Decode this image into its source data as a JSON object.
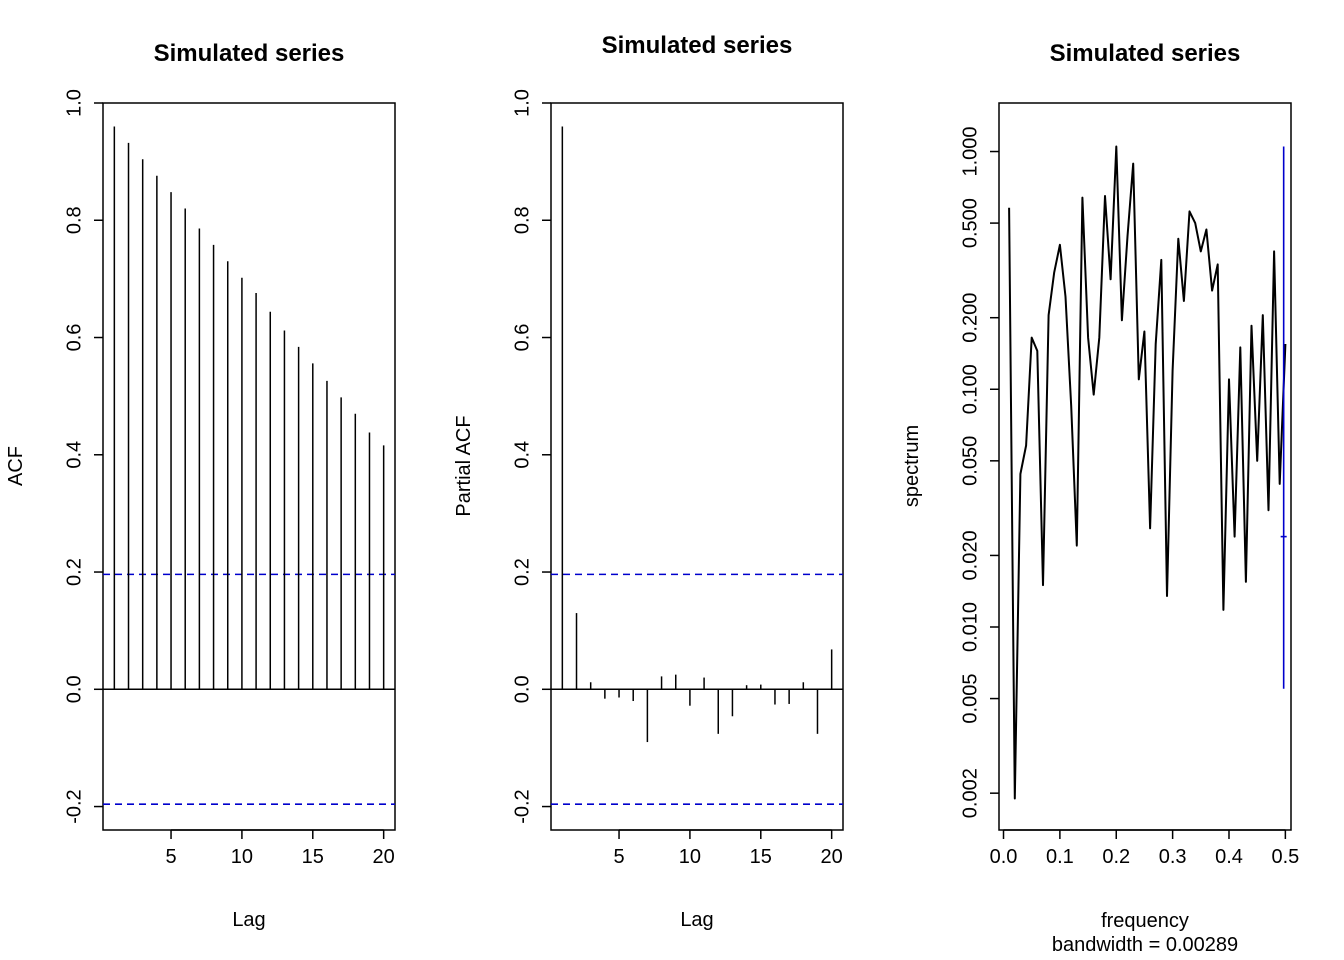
{
  "chart_data": [
    {
      "type": "bar",
      "title": "Simulated series",
      "xlabel": "Lag",
      "ylabel": "ACF",
      "xlim": [
        0.2,
        20.8
      ],
      "ylim": [
        -0.24,
        1.0
      ],
      "xticks": [
        5,
        10,
        15,
        20
      ],
      "yticks": [
        "-0.2",
        "0.0",
        "0.2",
        "0.4",
        "0.6",
        "0.8",
        "1.0"
      ],
      "ci": 0.196,
      "ci_color": "#0000cc",
      "x": [
        1,
        2,
        3,
        4,
        5,
        6,
        7,
        8,
        9,
        10,
        11,
        12,
        13,
        14,
        15,
        16,
        17,
        18,
        19,
        20
      ],
      "values": [
        0.96,
        0.932,
        0.904,
        0.876,
        0.848,
        0.82,
        0.786,
        0.758,
        0.73,
        0.702,
        0.676,
        0.644,
        0.612,
        0.584,
        0.556,
        0.526,
        0.498,
        0.47,
        0.438,
        0.416
      ]
    },
    {
      "type": "bar",
      "title": "Simulated series",
      "xlabel": "Lag",
      "ylabel": "Partial ACF",
      "xlim": [
        0.2,
        20.8
      ],
      "ylim": [
        -0.24,
        1.0
      ],
      "xticks": [
        5,
        10,
        15,
        20
      ],
      "yticks": [
        "-0.2",
        "0.0",
        "0.2",
        "0.4",
        "0.6",
        "0.8",
        "1.0"
      ],
      "ci": 0.196,
      "ci_color": "#0000cc",
      "x": [
        1,
        2,
        3,
        4,
        5,
        6,
        7,
        8,
        9,
        10,
        11,
        12,
        13,
        14,
        15,
        16,
        17,
        18,
        19,
        20
      ],
      "values": [
        0.96,
        0.13,
        0.012,
        -0.016,
        -0.014,
        -0.02,
        -0.09,
        0.022,
        0.025,
        -0.028,
        0.02,
        -0.076,
        -0.046,
        0.007,
        0.008,
        -0.026,
        -0.025,
        0.012,
        -0.076,
        0.068
      ]
    },
    {
      "type": "line",
      "title": "Simulated series",
      "xlabel": "frequency",
      "xlabel2": "bandwidth = 0.00289",
      "ylabel": "spectrum",
      "log_y": true,
      "xlim": [
        -0.008,
        0.51
      ],
      "ylim": [
        0.0014,
        1.6
      ],
      "xticks": [
        "0.0",
        "0.1",
        "0.2",
        "0.3",
        "0.4",
        "0.5"
      ],
      "yticks": [
        "0.002",
        "0.005",
        "0.010",
        "0.020",
        "0.050",
        "0.100",
        "0.200",
        "0.500",
        "1.000"
      ],
      "line_color": "#000000",
      "ci_color": "#0000cc",
      "ci_bar": {
        "x": 0.497,
        "low": 0.0055,
        "mid": 0.024,
        "high": 1.05
      },
      "x": [
        0.01,
        0.02,
        0.03,
        0.04,
        0.05,
        0.06,
        0.07,
        0.08,
        0.09,
        0.1,
        0.11,
        0.12,
        0.13,
        0.14,
        0.15,
        0.16,
        0.17,
        0.18,
        0.19,
        0.2,
        0.21,
        0.22,
        0.23,
        0.24,
        0.25,
        0.26,
        0.27,
        0.28,
        0.29,
        0.3,
        0.31,
        0.32,
        0.33,
        0.34,
        0.35,
        0.36,
        0.37,
        0.38,
        0.39,
        0.4,
        0.41,
        0.42,
        0.43,
        0.44,
        0.45,
        0.46,
        0.47,
        0.48,
        0.49,
        0.5
      ],
      "values": [
        0.58,
        0.0019,
        0.044,
        0.058,
        0.165,
        0.145,
        0.015,
        0.205,
        0.31,
        0.405,
        0.245,
        0.085,
        0.022,
        0.64,
        0.165,
        0.095,
        0.165,
        0.65,
        0.29,
        1.05,
        0.195,
        0.44,
        0.89,
        0.11,
        0.175,
        0.026,
        0.155,
        0.35,
        0.0135,
        0.12,
        0.43,
        0.235,
        0.56,
        0.5,
        0.38,
        0.47,
        0.26,
        0.335,
        0.0118,
        0.11,
        0.024,
        0.15,
        0.0155,
        0.185,
        0.05,
        0.205,
        0.031,
        0.38,
        0.04,
        0.155
      ]
    }
  ]
}
